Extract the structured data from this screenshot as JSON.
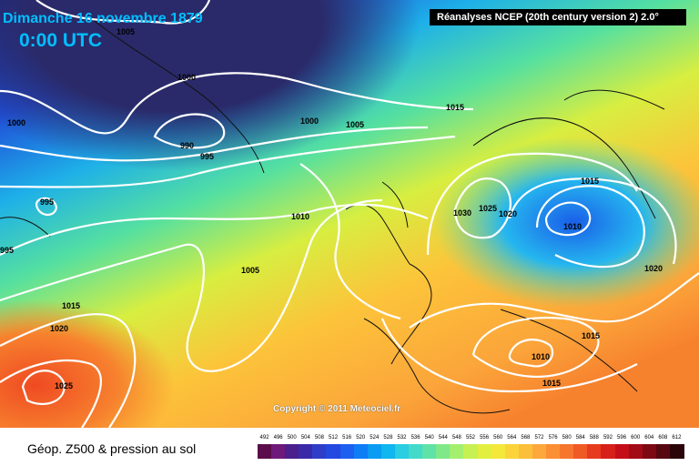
{
  "header": {
    "date": "Dimanche 16 novembre 1879",
    "time": "0:00 UTC",
    "source": "Réanalyses NCEP (20th century version 2) 2.0°"
  },
  "copyright": "Copyright © 2011 Meteociel.fr",
  "footer": {
    "label": "Géop. Z500 & pression au sol"
  },
  "isobars": [
    "1005",
    "1000",
    "1000",
    "990",
    "995",
    "1000",
    "1005",
    "1015",
    "995",
    "995",
    "1010",
    "1005",
    "1015",
    "1020",
    "1025",
    "1030",
    "1025",
    "1020",
    "1015",
    "1010",
    "1020",
    "1015",
    "1010",
    "1015"
  ],
  "legend": {
    "values": [
      "492",
      "496",
      "500",
      "504",
      "508",
      "512",
      "516",
      "520",
      "524",
      "528",
      "532",
      "536",
      "540",
      "544",
      "548",
      "552",
      "556",
      "560",
      "564",
      "568",
      "572",
      "576",
      "580",
      "584",
      "588",
      "592",
      "596",
      "600",
      "604",
      "608",
      "612"
    ],
    "colors": [
      "#5a0d4a",
      "#6e1a7a",
      "#4b1f8c",
      "#3a2aa8",
      "#2f3ec8",
      "#2449e0",
      "#1d5ff0",
      "#0f7df5",
      "#0a9bf2",
      "#10b6ee",
      "#2acde2",
      "#44dac9",
      "#5fe2a8",
      "#7fe98a",
      "#a3ef6e",
      "#c7f052",
      "#e3ef3e",
      "#f4e83a",
      "#fbd43a",
      "#fcbf3a",
      "#fca83a",
      "#fb8f34",
      "#f6762d",
      "#ef5a25",
      "#e63b1e",
      "#d7201a",
      "#c40f18",
      "#a30b16",
      "#7d0913",
      "#560710",
      "#2b040a"
    ]
  }
}
